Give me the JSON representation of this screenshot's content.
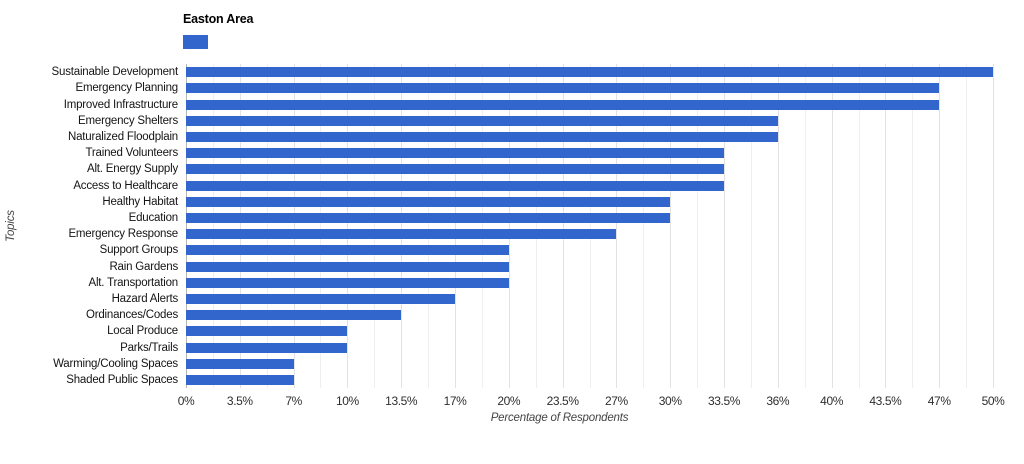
{
  "legend": {
    "series_label": "Easton Area"
  },
  "colors": {
    "bar": "#3366cc",
    "grid_minor": "#efefef",
    "grid_major": "#e2e2e2",
    "baseline": "#b5b5b5"
  },
  "chart_data": {
    "type": "bar",
    "orientation": "horizontal",
    "title": "",
    "xlabel": "Percentage of Respondents",
    "ylabel": "Topics",
    "legend": [
      "Easton Area"
    ],
    "legend_position": "top-left",
    "grid": true,
    "xlim": [
      0,
      50
    ],
    "x_tick_labels": [
      "0%",
      "3.5%",
      "7%",
      "10%",
      "13.5%",
      "17%",
      "20%",
      "23.5%",
      "27%",
      "30%",
      "33.5%",
      "36%",
      "40%",
      "43.5%",
      "47%",
      "50%"
    ],
    "categories": [
      "Sustainable Development",
      "Emergency Planning",
      "Improved Infrastructure",
      "Emergency Shelters",
      "Naturalized Floodplain",
      "Trained Volunteers",
      "Alt. Energy Supply",
      "Access to Healthcare",
      "Healthy Habitat",
      "Education",
      "Emergency Response",
      "Support Groups",
      "Rain Gardens",
      "Alt. Transportation",
      "Hazard Alerts",
      "Ordinances/Codes",
      "Local Produce",
      "Parks/Trails",
      "Warming/Cooling Spaces",
      "Shaded Public Spaces"
    ],
    "series": [
      {
        "name": "Easton Area",
        "values": [
          50,
          47,
          47,
          36,
          36,
          33.5,
          33.5,
          33.5,
          30,
          30,
          27,
          20,
          20,
          20,
          17,
          13.5,
          10,
          10,
          7,
          7
        ]
      }
    ]
  }
}
